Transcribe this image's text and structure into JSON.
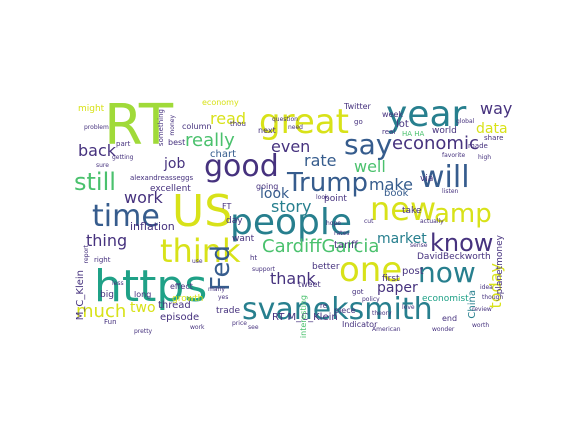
{
  "palette": {
    "yellow": "#d8e219",
    "lime": "#a0da39",
    "green": "#4ac16d",
    "teal": "#1fa187",
    "cyan": "#277f8e",
    "blue": "#365c8d",
    "indigo": "#46327e",
    "purple": "#440154"
  },
  "words": [
    {
      "text": "RT",
      "color": "lime"
    },
    {
      "text": "US",
      "color": "yellow"
    },
    {
      "text": "https",
      "color": "teal"
    },
    {
      "text": "year",
      "color": "cyan"
    },
    {
      "text": "great",
      "color": "yellow"
    },
    {
      "text": "people",
      "color": "cyan"
    },
    {
      "text": "good",
      "color": "indigo"
    },
    {
      "text": "time",
      "color": "blue"
    },
    {
      "text": "new",
      "color": "yellow"
    },
    {
      "text": "amp",
      "color": "yellow"
    },
    {
      "text": "one",
      "color": "yellow"
    },
    {
      "text": "think",
      "color": "yellow"
    },
    {
      "text": "svaneksmith",
      "color": "cyan"
    },
    {
      "text": "say",
      "color": "blue"
    },
    {
      "text": "Trump",
      "color": "blue"
    },
    {
      "text": "will",
      "color": "blue"
    },
    {
      "text": "now",
      "color": "cyan"
    },
    {
      "text": "know",
      "color": "indigo"
    },
    {
      "text": "Fed",
      "color": "blue"
    },
    {
      "text": "still",
      "color": "green"
    },
    {
      "text": "economic",
      "color": "indigo"
    },
    {
      "text": "CardiffGarcia",
      "color": "green"
    },
    {
      "text": "way",
      "color": "indigo"
    },
    {
      "text": "back",
      "color": "indigo"
    },
    {
      "text": "read",
      "color": "yellow"
    },
    {
      "text": "really",
      "color": "green"
    },
    {
      "text": "even",
      "color": "indigo"
    },
    {
      "text": "rate",
      "color": "blue"
    },
    {
      "text": "data",
      "color": "yellow"
    },
    {
      "text": "job",
      "color": "indigo"
    },
    {
      "text": "work",
      "color": "indigo"
    },
    {
      "text": "story",
      "color": "cyan"
    },
    {
      "text": "well",
      "color": "green"
    },
    {
      "text": "make",
      "color": "blue"
    },
    {
      "text": "look",
      "color": "blue"
    },
    {
      "text": "thing",
      "color": "indigo"
    },
    {
      "text": "market",
      "color": "cyan"
    },
    {
      "text": "thank",
      "color": "indigo"
    },
    {
      "text": "paper",
      "color": "indigo"
    },
    {
      "text": "today",
      "color": "yellow"
    },
    {
      "text": "much",
      "color": "yellow"
    },
    {
      "text": "two",
      "color": "yellow"
    },
    {
      "text": "chart",
      "color": "blue"
    },
    {
      "text": "lot",
      "color": "indigo"
    },
    {
      "text": "economist",
      "color": "teal"
    },
    {
      "text": "China",
      "color": "cyan"
    },
    {
      "text": "RT M_C_Klein",
      "color": "indigo"
    },
    {
      "text": "M_C_Klein",
      "color": "indigo"
    },
    {
      "text": "DavidBeckworth",
      "color": "indigo"
    },
    {
      "text": "planetmoney",
      "color": "indigo"
    },
    {
      "text": "inflation",
      "color": "indigo"
    },
    {
      "text": "episode",
      "color": "indigo"
    },
    {
      "text": "tariff",
      "color": "indigo"
    },
    {
      "text": "post",
      "color": "indigo"
    },
    {
      "text": "book",
      "color": "blue"
    },
    {
      "text": "thread",
      "color": "indigo"
    },
    {
      "text": "better",
      "color": "indigo"
    },
    {
      "text": "excellent",
      "color": "indigo"
    },
    {
      "text": "growth",
      "color": "yellow"
    },
    {
      "text": "trade",
      "color": "indigo"
    },
    {
      "text": "point",
      "color": "indigo"
    },
    {
      "text": "take",
      "color": "indigo"
    },
    {
      "text": "first",
      "color": "indigo"
    },
    {
      "text": "Twitter",
      "color": "indigo"
    },
    {
      "text": "via",
      "color": "indigo"
    },
    {
      "text": "world",
      "color": "indigo"
    },
    {
      "text": "want",
      "color": "indigo"
    },
    {
      "text": "day",
      "color": "indigo"
    },
    {
      "text": "big",
      "color": "indigo"
    },
    {
      "text": "long",
      "color": "indigo"
    },
    {
      "text": "effect",
      "color": "indigo"
    },
    {
      "text": "going",
      "color": "indigo"
    },
    {
      "text": "next",
      "color": "indigo"
    },
    {
      "text": "economy",
      "color": "yellow"
    },
    {
      "text": "column",
      "color": "indigo"
    },
    {
      "text": "best",
      "color": "indigo"
    },
    {
      "text": "week",
      "color": "indigo"
    },
    {
      "text": "end",
      "color": "indigo"
    },
    {
      "text": "piece",
      "color": "indigo"
    },
    {
      "text": "tweet",
      "color": "indigo"
    },
    {
      "text": "Indicator",
      "color": "indigo"
    },
    {
      "text": "interesting",
      "color": "green"
    },
    {
      "text": "something",
      "color": "indigo"
    },
    {
      "text": "alexandreasseggs",
      "color": "indigo"
    },
    {
      "text": "share",
      "color": "indigo"
    },
    {
      "text": "might",
      "color": "yellow"
    },
    {
      "text": "HA HA",
      "color": "green"
    },
    {
      "text": "FT",
      "color": "indigo"
    },
    {
      "text": "thou",
      "color": "indigo"
    },
    {
      "text": "made",
      "color": "indigo"
    },
    {
      "text": "re",
      "color": "indigo"
    },
    {
      "text": "go",
      "color": "indigo"
    },
    {
      "text": "got",
      "color": "indigo"
    },
    {
      "text": "real",
      "color": "indigo"
    },
    {
      "text": "part",
      "color": "indigo"
    },
    {
      "text": "Fun",
      "color": "indigo"
    },
    {
      "text": "right",
      "color": "indigo"
    },
    {
      "text": "policy",
      "color": "indigo"
    },
    {
      "text": "global",
      "color": "indigo"
    },
    {
      "text": "question",
      "color": "indigo"
    },
    {
      "text": "money",
      "color": "indigo"
    },
    {
      "text": "idea",
      "color": "indigo"
    },
    {
      "text": "hope",
      "color": "indigo"
    },
    {
      "text": "less",
      "color": "indigo"
    },
    {
      "text": "ht",
      "color": "indigo"
    },
    {
      "text": "love",
      "color": "indigo"
    },
    {
      "text": "support",
      "color": "indigo"
    },
    {
      "text": "report",
      "color": "indigo"
    },
    {
      "text": "need",
      "color": "indigo"
    },
    {
      "text": "actually",
      "color": "indigo"
    },
    {
      "text": "though",
      "color": "indigo"
    },
    {
      "text": "sure",
      "color": "indigo"
    },
    {
      "text": "price",
      "color": "indigo"
    },
    {
      "text": "high",
      "color": "indigo"
    },
    {
      "text": "cut",
      "color": "indigo"
    },
    {
      "text": "use",
      "color": "indigo"
    },
    {
      "text": "listen",
      "color": "indigo"
    },
    {
      "text": "American",
      "color": "indigo"
    },
    {
      "text": "problem",
      "color": "indigo"
    },
    {
      "text": "wonder",
      "color": "indigo"
    },
    {
      "text": "favorite",
      "color": "indigo"
    },
    {
      "text": "many",
      "color": "indigo"
    },
    {
      "text": "see",
      "color": "indigo"
    },
    {
      "text": "getting",
      "color": "indigo"
    },
    {
      "text": "sense",
      "color": "indigo"
    },
    {
      "text": "work",
      "color": "indigo"
    },
    {
      "text": "theory",
      "color": "indigo"
    },
    {
      "text": "rates",
      "color": "indigo"
    },
    {
      "text": "review",
      "color": "indigo"
    },
    {
      "text": "pretty",
      "color": "indigo"
    },
    {
      "text": "yes",
      "color": "indigo"
    },
    {
      "text": "worth",
      "color": "indigo"
    },
    {
      "text": "look",
      "color": "indigo"
    }
  ]
}
